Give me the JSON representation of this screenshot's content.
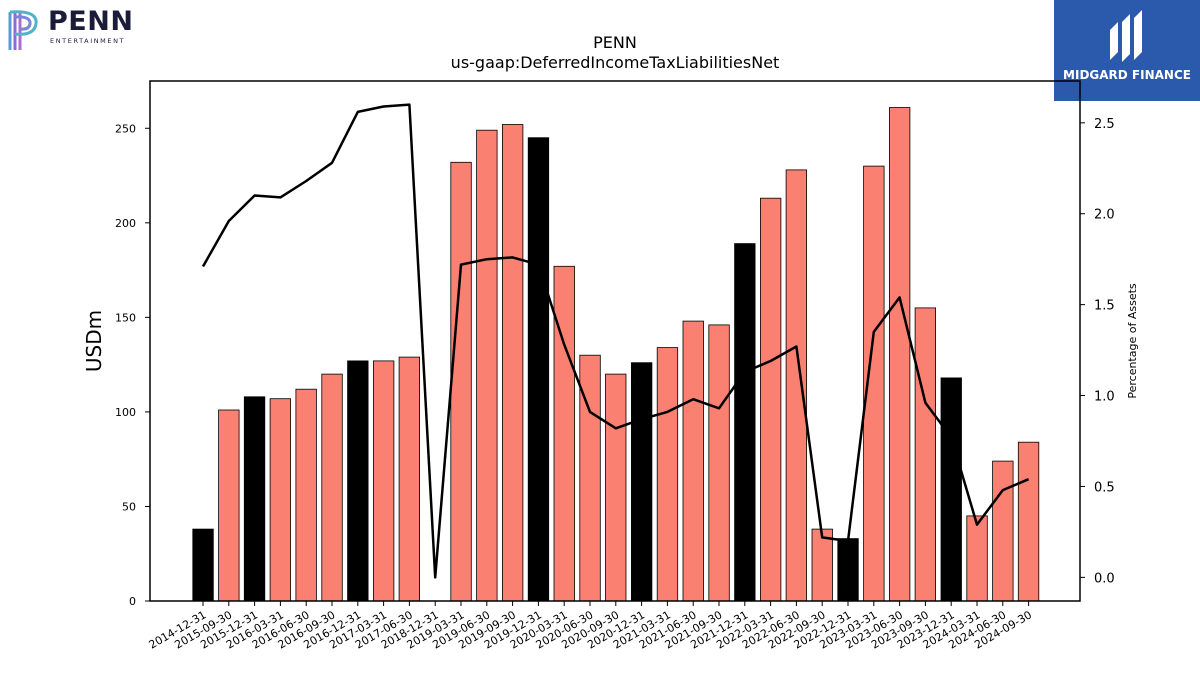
{
  "logos": {
    "penn_word": "PENN",
    "penn_sub": "ENTERTAINMENT",
    "midgard_name": "MIDGARD FINANCE"
  },
  "colors": {
    "bar_default": "#fa8072",
    "bar_highlight": "#000000",
    "line": "#000000",
    "midgard_bg": "#2b5aad"
  },
  "chart_data": {
    "type": "bar",
    "title": "PENN",
    "subtitle": "us-gaap:DeferredIncomeTaxLiabilitiesNet",
    "ylabel": "USDm",
    "y2label": "Percentage of Assets",
    "ylim": [
      0,
      275
    ],
    "y2lim": [
      -0.13,
      2.73
    ],
    "yticks": [
      0,
      50,
      100,
      150,
      200,
      250
    ],
    "y2ticks": [
      "0.0",
      "0.5",
      "1.0",
      "1.5",
      "2.0",
      "2.5"
    ],
    "grid": false,
    "categories": [
      "2014-12-31",
      "2015-09-30",
      "2015-12-31",
      "2016-03-31",
      "2016-06-30",
      "2016-09-30",
      "2016-12-31",
      "2017-03-31",
      "2017-06-30",
      "2018-12-31",
      "2019-03-31",
      "2019-06-30",
      "2019-09-30",
      "2019-12-31",
      "2020-03-31",
      "2020-06-30",
      "2020-09-30",
      "2020-12-31",
      "2021-03-31",
      "2021-06-30",
      "2021-09-30",
      "2021-12-31",
      "2022-03-31",
      "2022-06-30",
      "2022-09-30",
      "2022-12-31",
      "2023-03-31",
      "2023-06-30",
      "2023-09-30",
      "2023-12-31",
      "2024-03-31",
      "2024-06-30",
      "2024-09-30"
    ],
    "series": [
      {
        "type": "bar",
        "values": [
          38,
          101,
          108,
          107,
          112,
          120,
          127,
          127,
          129,
          0,
          232,
          249,
          252,
          245,
          177,
          130,
          120,
          126,
          134,
          148,
          146,
          189,
          213,
          228,
          38,
          33,
          230,
          261,
          155,
          118,
          45,
          74,
          84
        ],
        "highlight": [
          true,
          false,
          true,
          false,
          false,
          false,
          true,
          false,
          false,
          false,
          false,
          false,
          false,
          true,
          false,
          false,
          false,
          true,
          false,
          false,
          false,
          true,
          false,
          false,
          false,
          true,
          false,
          false,
          false,
          true,
          false,
          false,
          false
        ]
      },
      {
        "type": "line",
        "axis": "right",
        "values": [
          1.71,
          1.96,
          2.1,
          2.09,
          2.18,
          2.28,
          2.56,
          2.59,
          2.6,
          0.0,
          1.72,
          1.75,
          1.76,
          1.72,
          1.28,
          0.91,
          0.82,
          0.87,
          0.91,
          0.98,
          0.93,
          1.13,
          1.19,
          1.27,
          0.22,
          0.2,
          1.35,
          1.54,
          0.96,
          0.77,
          0.29,
          0.48,
          0.54
        ]
      }
    ]
  }
}
